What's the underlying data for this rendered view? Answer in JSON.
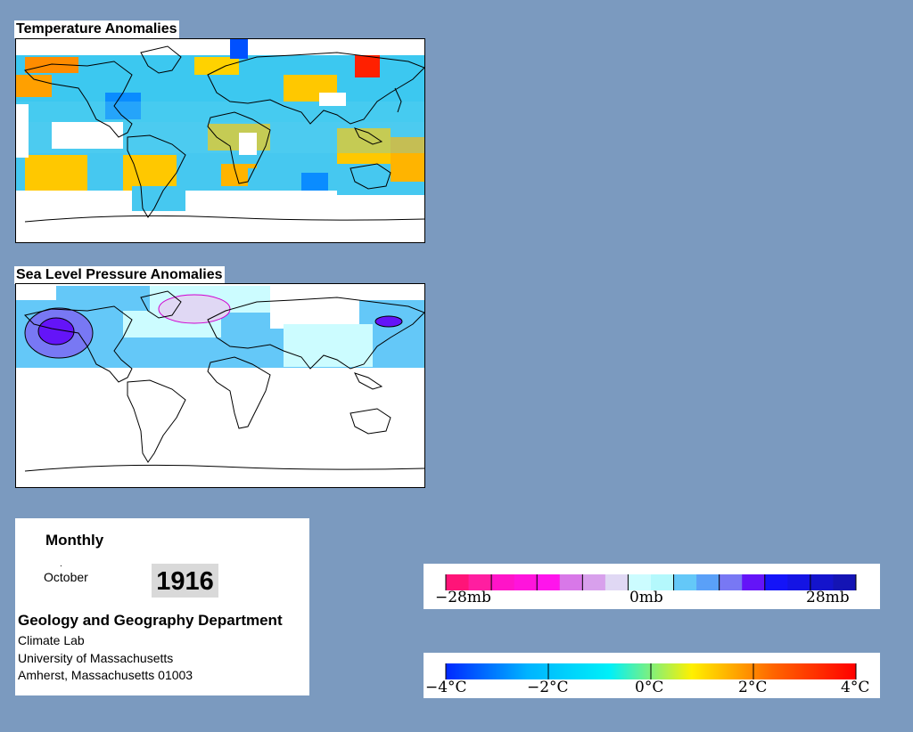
{
  "temperature_map": {
    "title": "Temperature Anomalies"
  },
  "pressure_map": {
    "title": "Sea Level Pressure Anomalies"
  },
  "info": {
    "period": "Monthly",
    "month": "October",
    "dot": ".",
    "year": "1916",
    "department": "Geology and Geography Department",
    "lab": "Climate Lab",
    "university": "University of Massachusetts",
    "address": "Amherst, Massachusetts 01003"
  },
  "pressure_legend": {
    "labels": [
      "−28mb",
      "0mb",
      "28mb"
    ],
    "colors": [
      "#ff1478",
      "#ff1ea0",
      "#ff14c8",
      "#ff14dc",
      "#ff14ec",
      "#d878e8",
      "#d8a0ec",
      "#e0d8f4",
      "#ccfcff",
      "#b4f8fc",
      "#64c8f8",
      "#5aa0f8",
      "#7878f4",
      "#6414f8",
      "#1414f8",
      "#1414e4",
      "#1414cc",
      "#1414b4"
    ]
  },
  "temperature_legend": {
    "labels": [
      "−4°C",
      "−2°C",
      "0°C",
      "2°C",
      "4°C"
    ],
    "colors": [
      "#0028ff",
      "#00b4ff",
      "#00f0f8",
      "#fff000",
      "#ff6400",
      "#ff0000"
    ]
  }
}
